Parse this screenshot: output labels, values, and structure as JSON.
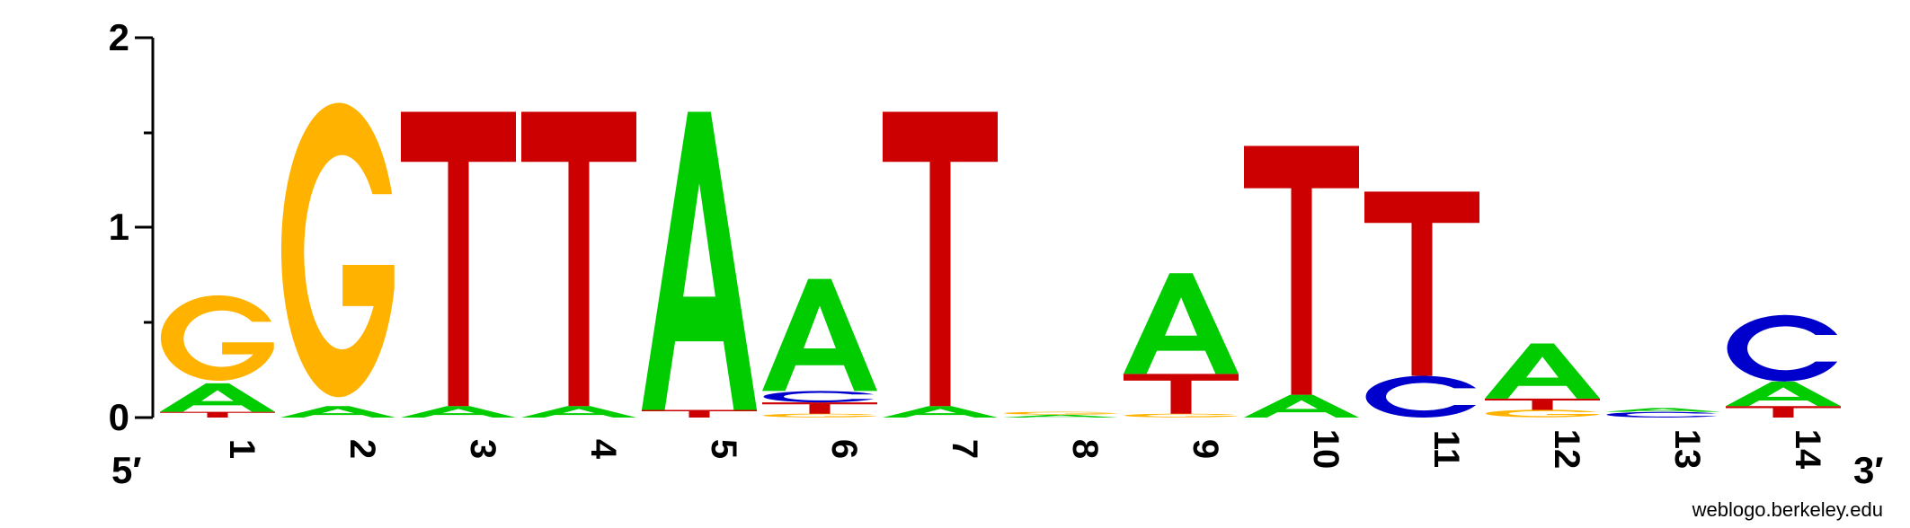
{
  "chart_data": {
    "type": "sequence-logo",
    "title": "",
    "xlabel": "",
    "ylabel": "",
    "ylim": [
      0,
      2
    ],
    "y_ticks": [
      "0",
      "1",
      "2"
    ],
    "end_labels": {
      "left": "5′",
      "right": "3′"
    },
    "credit": "weblogo.berkeley.edu",
    "colors": {
      "A": "#00cc00",
      "C": "#0000cc",
      "G": "#ffb300",
      "T": "#cc0000"
    },
    "positions": [
      {
        "label": "1",
        "stack": [
          [
            "T",
            0.03
          ],
          [
            "A",
            0.15
          ],
          [
            "G",
            0.45
          ]
        ]
      },
      {
        "label": "2",
        "stack": [
          [
            "A",
            0.06
          ],
          [
            "G",
            1.55
          ]
        ]
      },
      {
        "label": "3",
        "stack": [
          [
            "A",
            0.06
          ],
          [
            "T",
            1.55
          ]
        ]
      },
      {
        "label": "4",
        "stack": [
          [
            "A",
            0.06
          ],
          [
            "T",
            1.55
          ]
        ]
      },
      {
        "label": "5",
        "stack": [
          [
            "T",
            0.04
          ],
          [
            "A",
            1.57
          ]
        ]
      },
      {
        "label": "6",
        "stack": [
          [
            "G",
            0.02
          ],
          [
            "T",
            0.06
          ],
          [
            "C",
            0.06
          ],
          [
            "A",
            0.59
          ]
        ]
      },
      {
        "label": "7",
        "stack": [
          [
            "A",
            0.06
          ],
          [
            "T",
            1.55
          ]
        ]
      },
      {
        "label": "8",
        "stack": [
          [
            "A",
            0.015
          ],
          [
            "G",
            0.015
          ]
        ]
      },
      {
        "label": "9",
        "stack": [
          [
            "G",
            0.02
          ],
          [
            "T",
            0.21
          ],
          [
            "A",
            0.53
          ]
        ]
      },
      {
        "label": "10",
        "stack": [
          [
            "A",
            0.12
          ],
          [
            "T",
            1.31
          ]
        ]
      },
      {
        "label": "11",
        "stack": [
          [
            "C",
            0.22
          ],
          [
            "T",
            0.97
          ]
        ]
      },
      {
        "label": "12",
        "stack": [
          [
            "G",
            0.04
          ],
          [
            "T",
            0.06
          ],
          [
            "A",
            0.29
          ]
        ]
      },
      {
        "label": "13",
        "stack": [
          [
            "C",
            0.03
          ],
          [
            "A",
            0.02
          ]
        ]
      },
      {
        "label": "14",
        "stack": [
          [
            "T",
            0.06
          ],
          [
            "A",
            0.13
          ],
          [
            "C",
            0.35
          ]
        ]
      }
    ]
  }
}
